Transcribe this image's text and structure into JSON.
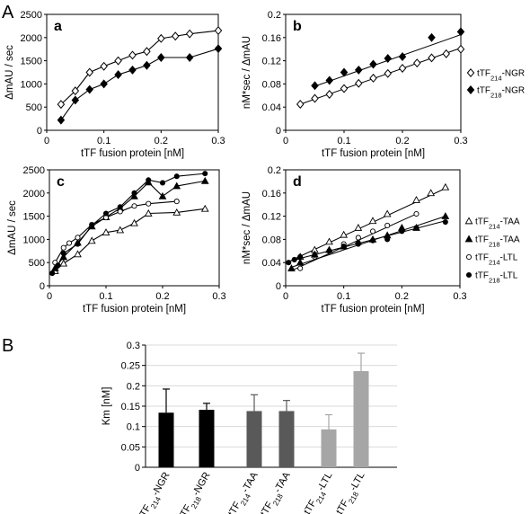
{
  "figure": {
    "section_a": "A",
    "section_b": "B"
  },
  "chart_data": [
    {
      "id": "a",
      "type": "line",
      "panel_label": "a",
      "xlabel": "tTF fusion protein [nM]",
      "ylabel": "ΔmAU / sec",
      "xlim": [
        0,
        0.3
      ],
      "ylim": [
        0,
        2500
      ],
      "xticks": [
        "0",
        "0.1",
        "0.2",
        "0.3"
      ],
      "yticks": [
        "0",
        "500",
        "1000",
        "1500",
        "2000",
        "2500"
      ],
      "series": [
        {
          "name": "tTF214-NGR",
          "marker": "diamond-open",
          "x": [
            0.025,
            0.05,
            0.075,
            0.1,
            0.125,
            0.15,
            0.175,
            0.2,
            0.225,
            0.25,
            0.3
          ],
          "y": [
            560,
            850,
            1250,
            1380,
            1500,
            1620,
            1700,
            1980,
            2030,
            2080,
            2150
          ]
        },
        {
          "name": "tTF218-NGR",
          "marker": "diamond-filled",
          "x": [
            0.025,
            0.05,
            0.075,
            0.1,
            0.125,
            0.15,
            0.175,
            0.2,
            0.25,
            0.3
          ],
          "y": [
            220,
            650,
            880,
            1000,
            1200,
            1300,
            1400,
            1570,
            1570,
            1760
          ]
        }
      ]
    },
    {
      "id": "b",
      "type": "scatter",
      "panel_label": "b",
      "xlabel": "tTF fusion protein [nM]",
      "ylabel": "nM*sec / ΔmAU",
      "xlim": [
        0,
        0.3
      ],
      "ylim": [
        0,
        0.2
      ],
      "xticks": [
        "0",
        "0.1",
        "0.2",
        "0.3"
      ],
      "yticks": [
        "0",
        "0.04",
        "0.08",
        "0.12",
        "0.16",
        "0.2"
      ],
      "legend_position": "right",
      "series": [
        {
          "name": "tTF214-NGR",
          "marker": "diamond-open",
          "x": [
            0.025,
            0.05,
            0.075,
            0.1,
            0.125,
            0.15,
            0.175,
            0.2,
            0.225,
            0.25,
            0.275,
            0.3
          ],
          "y": [
            0.045,
            0.055,
            0.062,
            0.072,
            0.081,
            0.09,
            0.098,
            0.107,
            0.116,
            0.125,
            0.132,
            0.14
          ],
          "fit": [
            [
              0.025,
              0.045
            ],
            [
              0.3,
              0.142
            ]
          ]
        },
        {
          "name": "tTF218-NGR",
          "marker": "diamond-filled",
          "x": [
            0.05,
            0.075,
            0.1,
            0.125,
            0.15,
            0.175,
            0.2,
            0.25,
            0.3
          ],
          "y": [
            0.077,
            0.086,
            0.1,
            0.104,
            0.114,
            0.124,
            0.127,
            0.16,
            0.17
          ],
          "fit": [
            [
              0.05,
              0.076
            ],
            [
              0.3,
              0.165
            ]
          ]
        }
      ]
    },
    {
      "id": "c",
      "type": "line",
      "panel_label": "c",
      "xlabel": "tTF fusion protein [nM]",
      "ylabel": "ΔmAU / sec",
      "xlim": [
        0,
        0.3
      ],
      "ylim": [
        0,
        2500
      ],
      "xticks": [
        "0",
        "0.1",
        "0.2",
        "0.3"
      ],
      "yticks": [
        "0",
        "500",
        "1000",
        "1500",
        "2000",
        "2500"
      ],
      "series": [
        {
          "name": "tTF214-TAA",
          "marker": "triangle-open",
          "x": [
            0.01,
            0.025,
            0.05,
            0.075,
            0.1,
            0.125,
            0.15,
            0.175,
            0.225,
            0.275
          ],
          "y": [
            320,
            480,
            680,
            970,
            1150,
            1200,
            1350,
            1560,
            1580,
            1660
          ]
        },
        {
          "name": "tTF218-TAA",
          "marker": "triangle-filled",
          "x": [
            0.01,
            0.025,
            0.05,
            0.075,
            0.1,
            0.125,
            0.15,
            0.175,
            0.2,
            0.225,
            0.275
          ],
          "y": [
            380,
            620,
            930,
            1280,
            1480,
            1670,
            1930,
            2230,
            1930,
            2150,
            2260
          ]
        },
        {
          "name": "tTF214-LTL",
          "marker": "circle-open",
          "x": [
            0.01,
            0.025,
            0.035,
            0.05,
            0.075,
            0.1,
            0.125,
            0.15,
            0.175,
            0.225
          ],
          "y": [
            500,
            820,
            920,
            1040,
            1320,
            1470,
            1600,
            1720,
            1770,
            1820
          ]
        },
        {
          "name": "tTF218-LTL",
          "marker": "circle-filled",
          "x": [
            0.005,
            0.015,
            0.025,
            0.05,
            0.075,
            0.1,
            0.125,
            0.15,
            0.175,
            0.2,
            0.225,
            0.275
          ],
          "y": [
            270,
            440,
            700,
            900,
            1300,
            1560,
            1700,
            2000,
            2280,
            2220,
            2360,
            2420
          ]
        }
      ]
    },
    {
      "id": "d",
      "type": "scatter",
      "panel_label": "d",
      "xlabel": "tTF fusion protein [nM]",
      "ylabel": "nM*sec / ΔmAU",
      "xlim": [
        0,
        0.3
      ],
      "ylim": [
        0,
        0.2
      ],
      "xticks": [
        "0",
        "0.1",
        "0.2",
        "0.3"
      ],
      "yticks": [
        "0",
        "0.04",
        "0.08",
        "0.12",
        "0.16",
        "0.2"
      ],
      "legend_position": "right",
      "series": [
        {
          "name": "tTF214-TAA",
          "marker": "triangle-open",
          "x": [
            0.025,
            0.05,
            0.075,
            0.1,
            0.125,
            0.15,
            0.175,
            0.225,
            0.25,
            0.275
          ],
          "y": [
            0.05,
            0.062,
            0.076,
            0.088,
            0.1,
            0.112,
            0.124,
            0.148,
            0.16,
            0.17
          ],
          "fit": [
            [
              0.01,
              0.044
            ],
            [
              0.275,
              0.168
            ]
          ]
        },
        {
          "name": "tTF218-TAA",
          "marker": "triangle-filled",
          "x": [
            0.01,
            0.025,
            0.05,
            0.075,
            0.1,
            0.125,
            0.15,
            0.175,
            0.2,
            0.225,
            0.275
          ],
          "y": [
            0.03,
            0.04,
            0.054,
            0.062,
            0.068,
            0.076,
            0.08,
            0.087,
            0.1,
            0.1,
            0.12
          ],
          "fit": [
            [
              0.01,
              0.032
            ],
            [
              0.275,
              0.12
            ]
          ]
        },
        {
          "name": "tTF214-LTL",
          "marker": "circle-open",
          "x": [
            0.025,
            0.05,
            0.075,
            0.1,
            0.125,
            0.15,
            0.175,
            0.225
          ],
          "y": [
            0.03,
            0.05,
            0.06,
            0.072,
            0.083,
            0.094,
            0.104,
            0.124
          ],
          "fit": [
            [
              0.01,
              0.026
            ],
            [
              0.225,
              0.124
            ]
          ]
        },
        {
          "name": "tTF218-LTL",
          "marker": "circle-filled",
          "x": [
            0.005,
            0.015,
            0.025,
            0.05,
            0.075,
            0.1,
            0.125,
            0.15,
            0.175,
            0.2,
            0.225,
            0.275
          ],
          "y": [
            0.04,
            0.045,
            0.05,
            0.053,
            0.06,
            0.068,
            0.072,
            0.078,
            0.08,
            0.094,
            0.1,
            0.11
          ],
          "fit": [
            [
              0.005,
              0.042
            ],
            [
              0.275,
              0.112
            ]
          ]
        }
      ]
    },
    {
      "id": "km",
      "type": "bar",
      "ylabel": "Km [nM]",
      "ylim": [
        0,
        0.3
      ],
      "yticks": [
        "0",
        "0.05",
        "0.1",
        "0.15",
        "0.2",
        "0.25",
        "0.3"
      ],
      "grid": true,
      "categories": [
        {
          "pre": "tTF",
          "sub": "214",
          "post": "-NGR"
        },
        {
          "pre": "tTF",
          "sub": "218",
          "post": "-NGR"
        },
        {
          "pre": "tTF",
          "sub": "214",
          "post": "-TAA"
        },
        {
          "pre": "tTF",
          "sub": "218",
          "post": "-TAA"
        },
        {
          "pre": "tTF",
          "sub": "214",
          "post": "-LTL"
        },
        {
          "pre": "tTF",
          "sub": "218",
          "post": "-LTL"
        }
      ],
      "values": [
        0.134,
        0.141,
        0.138,
        0.138,
        0.093,
        0.236
      ],
      "errors": [
        0.058,
        0.016,
        0.04,
        0.026,
        0.036,
        0.044
      ],
      "colors": [
        "#000000",
        "#000000",
        "#595959",
        "#595959",
        "#a6a6a6",
        "#a6a6a6"
      ],
      "groups": [
        [
          0,
          1
        ],
        [
          2,
          3
        ],
        [
          4,
          5
        ]
      ]
    }
  ],
  "legends": {
    "top": [
      {
        "marker": "diamond-open",
        "pre": "tTF",
        "sub": "214",
        "post": "-NGR"
      },
      {
        "marker": "diamond-filled",
        "pre": "tTF",
        "sub": "218",
        "post": "-NGR"
      }
    ],
    "bottom": [
      {
        "marker": "triangle-open",
        "pre": "tTF",
        "sub": "214",
        "post": "-TAA"
      },
      {
        "marker": "triangle-filled",
        "pre": "tTF",
        "sub": "218",
        "post": "-TAA"
      },
      {
        "marker": "circle-open",
        "pre": "tTF",
        "sub": "214",
        "post": "-LTL"
      },
      {
        "marker": "circle-filled",
        "pre": "tTF",
        "sub": "218",
        "post": "-LTL"
      }
    ]
  }
}
